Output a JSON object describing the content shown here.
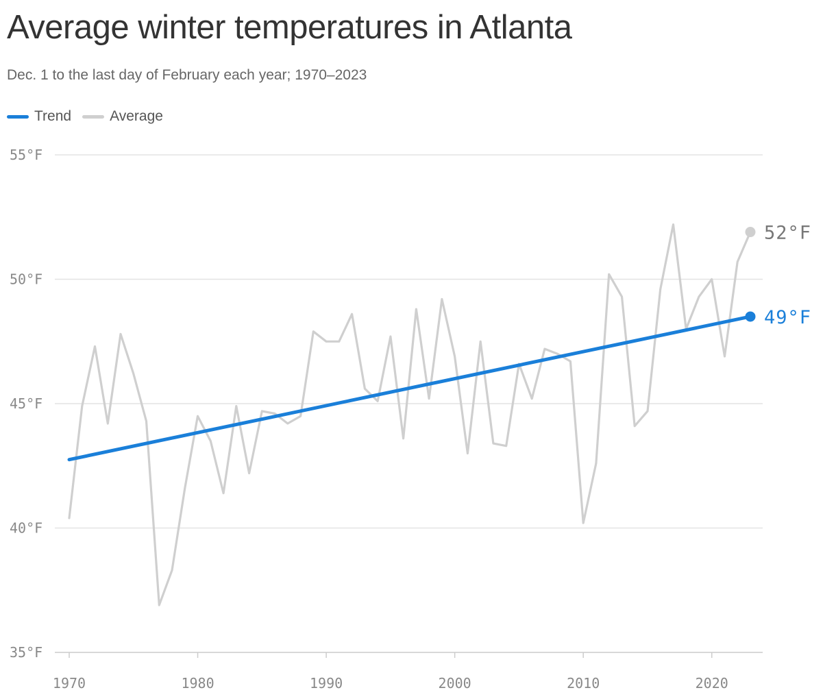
{
  "header": {
    "title": "Average winter temperatures in Atlanta",
    "subtitle": "Dec. 1 to the last day of February each year; 1970–2023"
  },
  "legend": {
    "items": [
      {
        "label": "Trend",
        "color": "#1a7fd9"
      },
      {
        "label": "Average",
        "color": "#cfcfcf"
      }
    ]
  },
  "chart_data": {
    "type": "line",
    "title": "Average winter temperatures in Atlanta",
    "subtitle": "Dec. 1 to the last day of February each year; 1970–2023",
    "xlim": [
      1970,
      2023
    ],
    "ylim": [
      35,
      55
    ],
    "x_ticks": [
      1970,
      1980,
      1990,
      2000,
      2010,
      2020
    ],
    "y_ticks": [
      {
        "value": 35,
        "label": "35°F"
      },
      {
        "value": 40,
        "label": "40°F"
      },
      {
        "value": 45,
        "label": "45°F"
      },
      {
        "value": 50,
        "label": "50°F"
      },
      {
        "value": 55,
        "label": "55°F"
      }
    ],
    "grid": "horizontal",
    "legend_position": "top-left",
    "series": [
      {
        "name": "Average",
        "color": "#cfcfcf",
        "end_label": "52°F",
        "points": [
          [
            1970,
            40.4
          ],
          [
            1971,
            44.9
          ],
          [
            1972,
            47.3
          ],
          [
            1973,
            44.2
          ],
          [
            1974,
            47.8
          ],
          [
            1975,
            46.2
          ],
          [
            1976,
            44.3
          ],
          [
            1977,
            36.9
          ],
          [
            1978,
            38.3
          ],
          [
            1979,
            41.6
          ],
          [
            1980,
            44.5
          ],
          [
            1981,
            43.5
          ],
          [
            1982,
            41.4
          ],
          [
            1983,
            44.9
          ],
          [
            1984,
            42.2
          ],
          [
            1985,
            44.7
          ],
          [
            1986,
            44.6
          ],
          [
            1987,
            44.2
          ],
          [
            1988,
            44.5
          ],
          [
            1989,
            47.9
          ],
          [
            1990,
            47.5
          ],
          [
            1991,
            47.5
          ],
          [
            1992,
            48.6
          ],
          [
            1993,
            45.6
          ],
          [
            1994,
            45.1
          ],
          [
            1995,
            47.7
          ],
          [
            1996,
            43.6
          ],
          [
            1997,
            48.8
          ],
          [
            1998,
            45.2
          ],
          [
            1999,
            49.2
          ],
          [
            2000,
            46.9
          ],
          [
            2001,
            43.0
          ],
          [
            2002,
            47.5
          ],
          [
            2003,
            43.4
          ],
          [
            2004,
            43.3
          ],
          [
            2005,
            46.6
          ],
          [
            2006,
            45.2
          ],
          [
            2007,
            47.2
          ],
          [
            2008,
            47.0
          ],
          [
            2009,
            46.7
          ],
          [
            2010,
            40.2
          ],
          [
            2011,
            42.6
          ],
          [
            2012,
            50.2
          ],
          [
            2013,
            49.3
          ],
          [
            2014,
            44.1
          ],
          [
            2015,
            44.7
          ],
          [
            2016,
            49.6
          ],
          [
            2017,
            52.2
          ],
          [
            2018,
            48.0
          ],
          [
            2019,
            49.3
          ],
          [
            2020,
            50.0
          ],
          [
            2021,
            46.9
          ],
          [
            2022,
            50.7
          ],
          [
            2023,
            51.9
          ]
        ]
      },
      {
        "name": "Trend",
        "color": "#1a7fd9",
        "end_label": "49°F",
        "points": [
          [
            1970,
            42.75
          ],
          [
            2023,
            48.5
          ]
        ]
      }
    ]
  }
}
